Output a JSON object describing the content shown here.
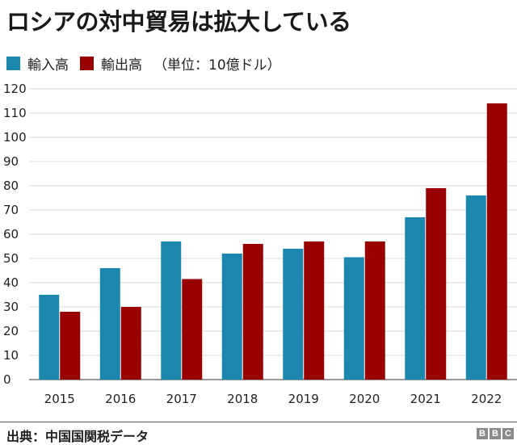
{
  "title": "ロシアの対中貿易は拡大している",
  "legend": {
    "items": [
      {
        "label": "輸入高",
        "color": "#1b87ad"
      },
      {
        "label": "輸出高",
        "color": "#990000"
      }
    ],
    "unit_note": "（単位：10億ドル）"
  },
  "chart_data": {
    "type": "bar",
    "title": "ロシアの対中貿易は拡大している",
    "categories": [
      "2015",
      "2016",
      "2017",
      "2018",
      "2019",
      "2020",
      "2021",
      "2022"
    ],
    "series": [
      {
        "name": "輸入高",
        "color": "#1b87ad",
        "values": [
          35,
          46,
          57,
          52,
          54,
          50.5,
          67,
          76
        ]
      },
      {
        "name": "輸出高",
        "color": "#990000",
        "values": [
          28,
          30,
          41.5,
          56,
          57,
          57,
          79,
          114
        ]
      }
    ],
    "xlabel": "",
    "ylabel": "",
    "ylim": [
      0,
      120
    ],
    "yticks": [
      0,
      10,
      20,
      30,
      40,
      50,
      60,
      70,
      80,
      90,
      100,
      110,
      120
    ],
    "grid": "horizontal",
    "legend_position": "top-left"
  },
  "source": "出典：中国国関税データ",
  "logo": [
    "B",
    "B",
    "C"
  ]
}
